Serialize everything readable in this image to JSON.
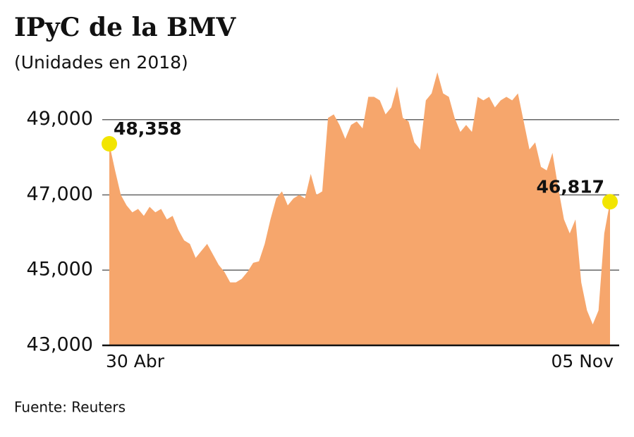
{
  "chart_data": {
    "type": "area",
    "title": "IPyC de la BMV",
    "subtitle": "(Unidades en 2018)",
    "source": "Fuente: Reuters",
    "categories": [
      "30 Abr",
      null,
      null,
      null,
      null,
      null,
      null,
      null,
      null,
      null,
      null,
      null,
      null,
      null,
      null,
      null,
      null,
      null,
      null,
      null,
      null,
      null,
      null,
      null,
      null,
      null,
      null,
      null,
      null,
      null,
      null,
      null,
      null,
      null,
      null,
      null,
      null,
      null,
      null,
      null,
      null,
      null,
      null,
      null,
      null,
      null,
      null,
      null,
      null,
      null,
      null,
      null,
      null,
      null,
      null,
      null,
      null,
      null,
      null,
      null,
      null,
      null,
      null,
      null,
      null,
      null,
      null,
      null,
      null,
      null,
      null,
      null,
      null,
      null,
      null,
      null,
      null,
      null,
      null,
      null,
      null,
      null,
      null,
      null,
      null,
      null,
      null,
      "05 Nov"
    ],
    "values": [
      48358,
      47651,
      47000,
      46721,
      46535,
      46628,
      46442,
      46684,
      46535,
      46628,
      46349,
      46442,
      46070,
      45791,
      45698,
      45326,
      45512,
      45698,
      45419,
      45140,
      44953,
      44674,
      44674,
      44767,
      44953,
      45195,
      45233,
      45698,
      46349,
      46907,
      47093,
      46721,
      46907,
      47000,
      46907,
      47558,
      47000,
      47093,
      49047,
      49140,
      48860,
      48488,
      48860,
      48953,
      48767,
      49605,
      49605,
      49512,
      49140,
      49326,
      49884,
      49047,
      48953,
      48395,
      48209,
      49512,
      49698,
      50256,
      49698,
      49605,
      49047,
      48674,
      48860,
      48674,
      49605,
      49512,
      49605,
      49326,
      49512,
      49605,
      49512,
      49698,
      48953,
      48209,
      48395,
      47744,
      47651,
      48116,
      47186,
      46349,
      45977,
      46349,
      44674,
      43930,
      43558,
      43930,
      45977,
      46817
    ],
    "value_labels": {
      "0": "48,358",
      "87": "46,817"
    },
    "color": "#f6a66c",
    "marker_color": "#f2e500",
    "ylim": [
      43000,
      50400
    ],
    "yticks": [
      {
        "value": 43000,
        "label": "43,000"
      },
      {
        "value": 45000,
        "label": "45,000"
      },
      {
        "value": 47000,
        "label": "47,000"
      },
      {
        "value": 49000,
        "label": "49,000"
      }
    ],
    "grid": true
  }
}
